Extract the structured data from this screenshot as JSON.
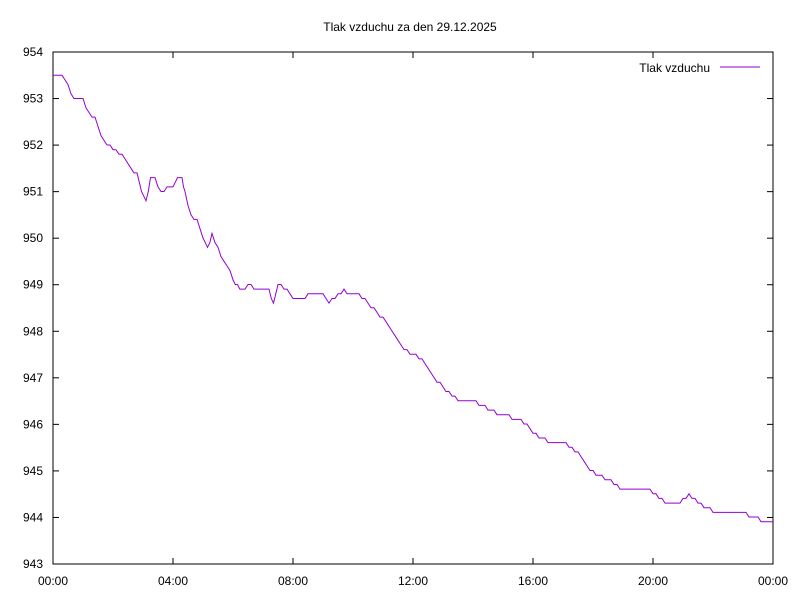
{
  "chart_data": {
    "type": "line",
    "title": "Tlak vzduchu za den 29.12.2025",
    "xlabel": "",
    "ylabel": "",
    "x_unit": "hours",
    "xlim": [
      0,
      24
    ],
    "ylim": [
      943,
      954
    ],
    "x_ticks": [
      {
        "value": 0,
        "label": "00:00"
      },
      {
        "value": 4,
        "label": "04:00"
      },
      {
        "value": 8,
        "label": "08:00"
      },
      {
        "value": 12,
        "label": "12:00"
      },
      {
        "value": 16,
        "label": "16:00"
      },
      {
        "value": 20,
        "label": "20:00"
      },
      {
        "value": 24,
        "label": "00:00"
      }
    ],
    "y_ticks": [
      954,
      953,
      952,
      951,
      950,
      949,
      948,
      947,
      946,
      945,
      944,
      943
    ],
    "grid": false,
    "legend_position": "top-right",
    "series": [
      {
        "name": "Tlak vzduchu",
        "color": "#9400d3",
        "x": [
          0.0,
          0.3,
          0.5,
          0.7,
          1.0,
          1.2,
          1.4,
          1.6,
          2.0,
          2.3,
          2.6,
          2.8,
          2.95,
          3.1,
          3.25,
          3.4,
          3.6,
          3.8,
          4.0,
          4.15,
          4.3,
          4.4,
          4.6,
          4.8,
          5.0,
          5.15,
          5.3,
          5.5,
          5.7,
          5.9,
          6.0,
          6.15,
          6.3,
          6.5,
          6.8,
          7.0,
          7.2,
          7.35,
          7.5,
          7.8,
          8.0,
          8.3,
          8.6,
          8.8,
          9.0,
          9.2,
          9.5,
          9.7,
          9.9,
          10.2,
          10.5,
          10.8,
          11.0,
          11.4,
          11.7,
          12.0,
          12.3,
          12.6,
          13.0,
          13.3,
          13.6,
          14.0,
          14.3,
          14.6,
          15.0,
          15.5,
          15.8,
          16.0,
          16.3,
          16.6,
          17.0,
          17.3,
          17.6,
          17.9,
          18.2,
          18.5,
          19.0,
          19.5,
          19.9,
          20.2,
          20.5,
          20.9,
          21.2,
          21.5,
          21.8,
          22.1,
          22.4,
          22.8,
          23.0,
          23.3,
          23.5,
          23.7,
          24.0
        ],
        "values": [
          953.5,
          953.5,
          953.3,
          953.0,
          953.0,
          952.7,
          952.6,
          952.2,
          951.9,
          951.8,
          951.5,
          951.4,
          951.0,
          950.8,
          951.3,
          951.3,
          951.0,
          951.1,
          951.1,
          951.3,
          951.3,
          951.0,
          950.5,
          950.4,
          950.0,
          949.8,
          950.1,
          949.8,
          949.5,
          949.3,
          949.1,
          949.0,
          948.9,
          949.0,
          948.9,
          948.9,
          948.9,
          948.6,
          949.0,
          948.9,
          948.7,
          948.7,
          948.8,
          948.8,
          948.8,
          948.6,
          948.8,
          948.9,
          948.8,
          948.8,
          948.6,
          948.4,
          948.3,
          947.9,
          947.6,
          947.5,
          947.4,
          947.1,
          946.8,
          946.6,
          946.5,
          946.5,
          946.4,
          946.3,
          946.2,
          946.1,
          946.0,
          945.8,
          945.7,
          945.6,
          945.6,
          945.5,
          945.3,
          945.0,
          944.9,
          944.8,
          944.6,
          944.6,
          944.6,
          944.4,
          944.3,
          944.3,
          944.5,
          944.3,
          944.2,
          944.1,
          944.1,
          944.1,
          944.1,
          944.0,
          944.0,
          943.9,
          943.9
        ]
      }
    ]
  }
}
